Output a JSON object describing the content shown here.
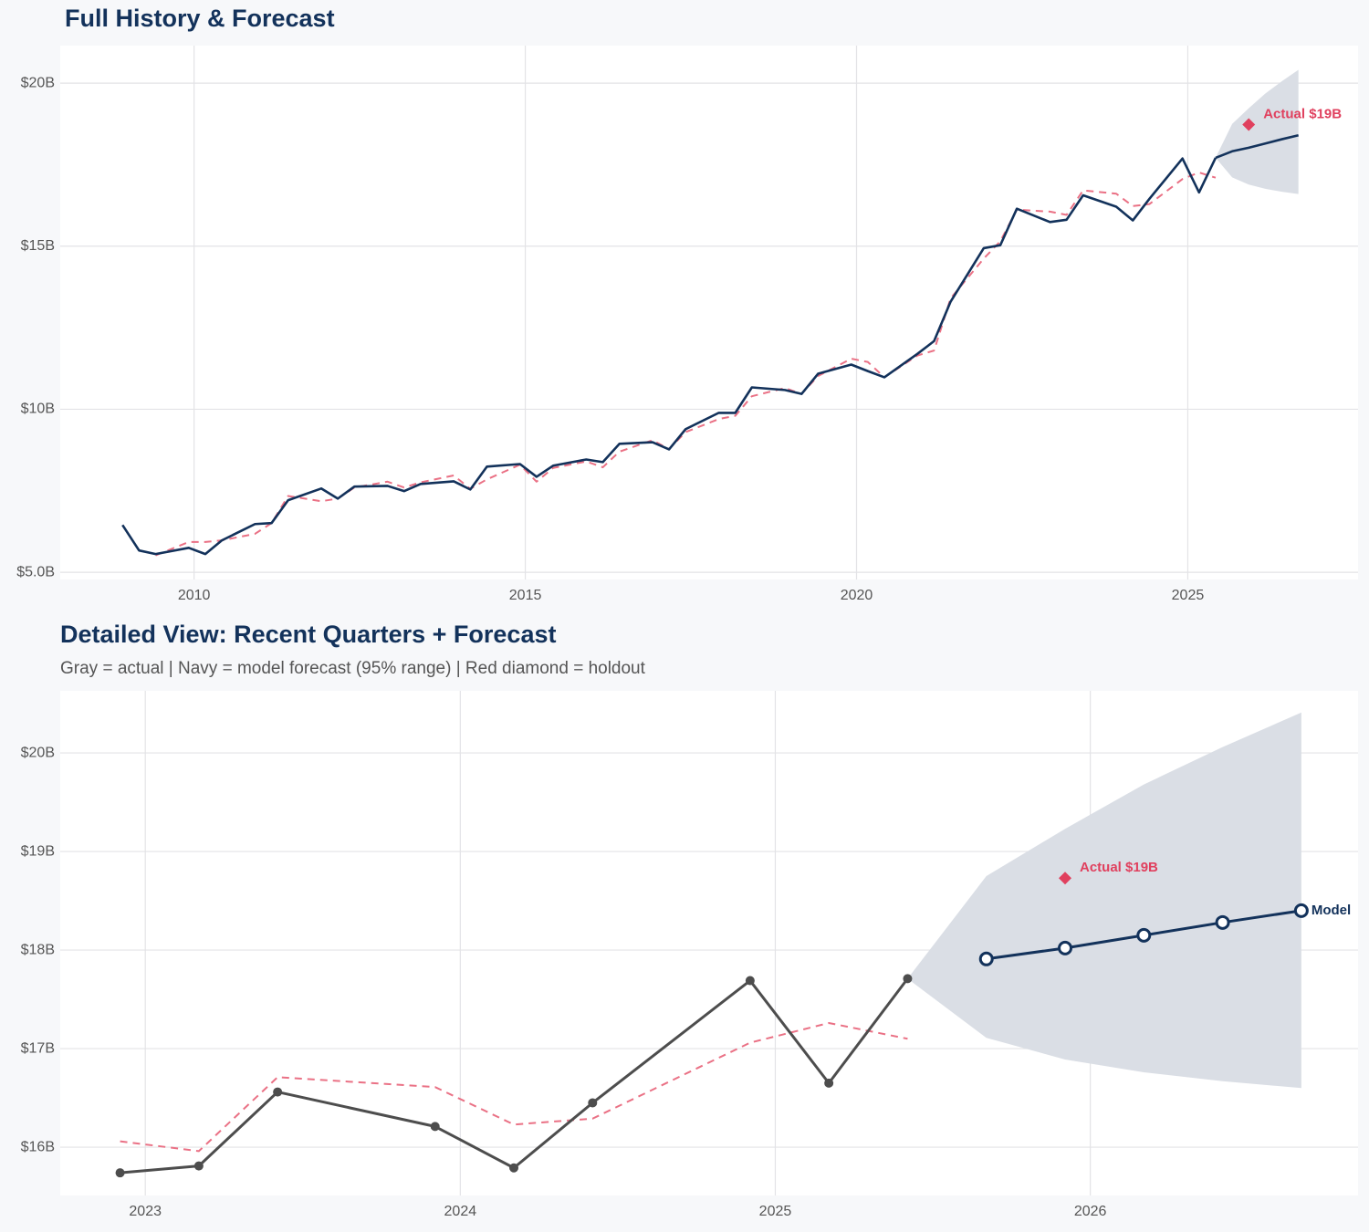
{
  "chart_data": [
    {
      "type": "line",
      "title": "Full History & Forecast",
      "xlim": [
        2007.98,
        2027.57
      ],
      "ylim": [
        4.78,
        21.15
      ],
      "xticks": [
        2010,
        2015,
        2020,
        2025
      ],
      "yticks": [
        {
          "value": 5,
          "label": "$5.0B"
        },
        {
          "value": 10,
          "label": "$10B"
        },
        {
          "value": 15,
          "label": "$15B"
        },
        {
          "value": 20,
          "label": "$20B"
        }
      ],
      "grid": true,
      "band": {
        "x": [
          2025.42,
          2025.67,
          2025.92,
          2026.17,
          2026.42,
          2026.67
        ],
        "lower": [
          17.71,
          17.11,
          16.89,
          16.76,
          16.67,
          16.6
        ],
        "upper": [
          17.71,
          18.75,
          19.23,
          19.68,
          20.06,
          20.41
        ],
        "color": "#dadee5"
      },
      "series": [
        {
          "color": "#ea7185",
          "dash": true,
          "x": [
            2009.42,
            2009.92,
            2010.17,
            2010.42,
            2010.92,
            2011.17,
            2011.42,
            2011.92,
            2012.17,
            2012.42,
            2012.92,
            2013.17,
            2013.42,
            2013.92,
            2014.17,
            2014.42,
            2014.92,
            2015.17,
            2015.42,
            2015.92,
            2016.17,
            2016.42,
            2016.92,
            2017.17,
            2017.42,
            2017.92,
            2018.17,
            2018.42,
            2018.92,
            2019.17,
            2019.42,
            2019.92,
            2020.17,
            2020.42,
            2020.92,
            2021.17,
            2021.42,
            2021.92,
            2022.17,
            2022.42,
            2022.92,
            2023.17,
            2023.42,
            2023.92,
            2024.17,
            2024.42,
            2024.92,
            2025.17,
            2025.42
          ],
          "values": [
            5.52,
            5.93,
            5.93,
            5.98,
            6.18,
            6.51,
            7.34,
            7.18,
            7.26,
            7.6,
            7.78,
            7.6,
            7.76,
            7.97,
            7.56,
            7.85,
            8.3,
            7.78,
            8.2,
            8.4,
            8.22,
            8.7,
            9.05,
            8.78,
            9.3,
            9.7,
            9.8,
            10.4,
            10.65,
            10.47,
            11.02,
            11.55,
            11.45,
            10.98,
            11.65,
            11.8,
            13.4,
            14.62,
            15.15,
            16.12,
            16.06,
            15.96,
            16.71,
            16.61,
            16.23,
            16.29,
            17.06,
            17.26,
            17.1
          ]
        },
        {
          "color": "#13325b",
          "x": [
            2008.92,
            2009.17,
            2009.42,
            2009.92,
            2010.17,
            2010.42,
            2010.92,
            2011.17,
            2011.42,
            2011.92,
            2012.17,
            2012.42,
            2012.92,
            2013.17,
            2013.42,
            2013.92,
            2014.17,
            2014.42,
            2014.92,
            2015.17,
            2015.42,
            2015.92,
            2016.17,
            2016.42,
            2016.92,
            2017.17,
            2017.42,
            2017.92,
            2018.17,
            2018.42,
            2018.92,
            2019.17,
            2019.42,
            2019.92,
            2020.17,
            2020.42,
            2020.92,
            2021.17,
            2021.42,
            2021.92,
            2022.17,
            2022.42,
            2022.92,
            2023.17,
            2023.42,
            2023.92,
            2024.17,
            2024.42,
            2024.92,
            2025.17,
            2025.42
          ],
          "values": [
            6.45,
            5.67,
            5.56,
            5.75,
            5.56,
            5.98,
            6.48,
            6.51,
            7.21,
            7.57,
            7.26,
            7.63,
            7.65,
            7.49,
            7.71,
            7.79,
            7.54,
            8.24,
            8.32,
            7.93,
            8.27,
            8.46,
            8.38,
            8.94,
            8.99,
            8.77,
            9.39,
            9.89,
            9.89,
            10.67,
            10.59,
            10.47,
            11.09,
            11.37,
            11.17,
            10.98,
            11.7,
            12.09,
            13.3,
            14.94,
            15.03,
            16.15,
            15.74,
            15.81,
            16.56,
            16.21,
            15.79,
            16.45,
            17.69,
            16.65,
            17.71
          ]
        },
        {
          "color": "#13325b",
          "x": [
            2025.42,
            2025.67,
            2025.92,
            2026.17,
            2026.42,
            2026.67
          ],
          "values": [
            17.71,
            17.91,
            18.02,
            18.15,
            18.28,
            18.4
          ]
        }
      ],
      "holdout": {
        "x": 2025.92,
        "y": 18.73,
        "label": "Actual $19B",
        "color": "#e0405e"
      }
    },
    {
      "type": "line",
      "title": "Detailed View: Recent Quarters + Forecast",
      "subtitle": "Gray = actual  |  Navy = model forecast (95% range)  |  Red diamond = holdout",
      "xlim": [
        2022.73,
        2026.85
      ],
      "ylim": [
        15.51,
        20.63
      ],
      "xticks": [
        2023,
        2024,
        2025,
        2026
      ],
      "yticks": [
        {
          "value": 16,
          "label": "$16B"
        },
        {
          "value": 17,
          "label": "$17B"
        },
        {
          "value": 18,
          "label": "$18B"
        },
        {
          "value": 19,
          "label": "$19B"
        },
        {
          "value": 20,
          "label": "$20B"
        }
      ],
      "grid": true,
      "band": {
        "x": [
          2025.42,
          2025.67,
          2025.92,
          2026.17,
          2026.42,
          2026.67
        ],
        "lower": [
          17.71,
          17.11,
          16.89,
          16.76,
          16.67,
          16.6
        ],
        "upper": [
          17.71,
          18.75,
          19.23,
          19.68,
          20.06,
          20.41
        ],
        "color": "#dadee5"
      },
      "series": [
        {
          "color": "#ea7185",
          "dash": true,
          "x": [
            2022.92,
            2023.17,
            2023.42,
            2023.92,
            2024.17,
            2024.42,
            2024.92,
            2025.17,
            2025.42
          ],
          "values": [
            16.06,
            15.96,
            16.71,
            16.61,
            16.23,
            16.29,
            17.06,
            17.26,
            17.1
          ]
        },
        {
          "color": "#4d4d4d",
          "marker": "filled",
          "x": [
            2022.92,
            2023.17,
            2023.42,
            2023.92,
            2024.17,
            2024.42,
            2024.92,
            2025.17,
            2025.42
          ],
          "values": [
            15.74,
            15.81,
            16.56,
            16.21,
            15.79,
            16.45,
            17.69,
            16.65,
            17.71
          ]
        },
        {
          "color": "#13325b",
          "marker": "hollow",
          "label": "Model",
          "x": [
            2025.67,
            2025.92,
            2026.17,
            2026.42,
            2026.67
          ],
          "values": [
            17.91,
            18.02,
            18.15,
            18.28,
            18.4
          ]
        }
      ],
      "holdout": {
        "x": 2025.92,
        "y": 18.73,
        "label": "Actual $19B",
        "color": "#e0405e"
      }
    }
  ]
}
